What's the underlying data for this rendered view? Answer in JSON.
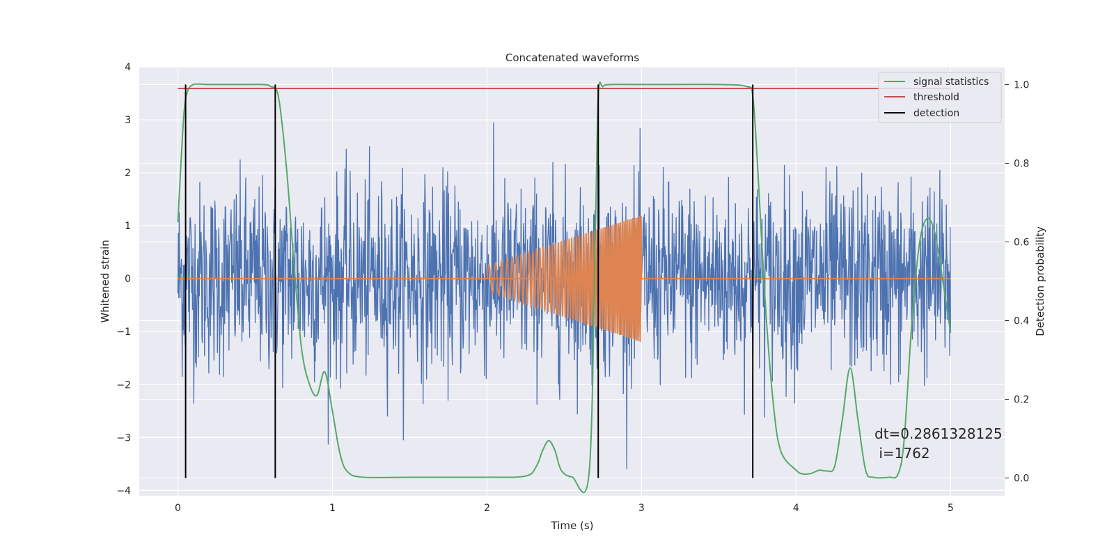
{
  "chart_data": {
    "type": "line",
    "title": "Concatenated waveforms",
    "xlabel": "Time (s)",
    "ylabel": "Whitened strain",
    "y2label": "Detection probability",
    "xlim": [
      -0.25,
      5.35
    ],
    "ylim": [
      -4.1,
      4.0
    ],
    "y2lim": [
      -0.045,
      1.045
    ],
    "xticks": [
      0,
      1,
      2,
      3,
      4,
      5
    ],
    "yticks": [
      -4,
      -3,
      -2,
      -1,
      0,
      1,
      2,
      3,
      4
    ],
    "y2ticks": [
      0.0,
      0.2,
      0.4,
      0.6,
      0.8,
      1.0
    ],
    "y2tick_labels": [
      "0.0",
      "0.2",
      "0.4",
      "0.6",
      "0.8",
      "1.0"
    ],
    "grid": true,
    "legend_position": "top-right",
    "noise": {
      "color": "#4c72b0",
      "x_range": [
        0,
        5
      ],
      "samples": 1800,
      "typical_amplitude": 0.9,
      "peak_amplitude": 3.6
    },
    "chirp": {
      "color": "#dd8452",
      "x_range": [
        2.0,
        3.0
      ],
      "amplitude_start": 0.25,
      "amplitude_end": 1.2,
      "freq_start": 20,
      "freq_end": 95,
      "baseline_range": [
        0,
        5
      ],
      "baseline_value": 0
    },
    "legend": [
      {
        "label": "signal statistics",
        "color": "#55a868"
      },
      {
        "label": "threshold",
        "color": "#c44e52"
      },
      {
        "label": "detection",
        "color": "#000000"
      }
    ],
    "signal_statistics": {
      "color": "#55a868",
      "x": [
        0,
        0.02,
        0.04,
        0.06,
        0.1,
        0.2,
        0.4,
        0.55,
        0.6,
        0.65,
        0.7,
        0.75,
        0.8,
        0.85,
        0.9,
        0.95,
        1.0,
        1.05,
        1.1,
        1.2,
        1.5,
        2.0,
        2.25,
        2.32,
        2.36,
        2.4,
        2.44,
        2.48,
        2.55,
        2.66,
        2.7,
        2.72,
        2.75,
        2.8,
        3.0,
        3.5,
        3.68,
        3.72,
        3.75,
        3.8,
        3.85,
        3.9,
        4.0,
        4.05,
        4.1,
        4.15,
        4.2,
        4.25,
        4.3,
        4.35,
        4.4,
        4.45,
        4.5,
        4.6,
        4.66,
        4.7,
        4.75,
        4.8,
        4.85,
        4.9,
        4.95,
        5.0
      ],
      "y": [
        0.65,
        0.8,
        0.93,
        0.98,
        1.0,
        1.0,
        1.0,
        1.0,
        0.995,
        0.97,
        0.8,
        0.55,
        0.33,
        0.24,
        0.21,
        0.27,
        0.17,
        0.06,
        0.015,
        0.002,
        0.002,
        0.002,
        0.005,
        0.03,
        0.07,
        0.095,
        0.07,
        0.02,
        0.003,
        0.01,
        0.6,
        0.97,
        0.995,
        1.0,
        1.0,
        1.0,
        0.995,
        0.97,
        0.8,
        0.45,
        0.2,
        0.07,
        0.02,
        0.01,
        0.012,
        0.02,
        0.018,
        0.03,
        0.15,
        0.28,
        0.15,
        0.02,
        0.002,
        0.002,
        0.01,
        0.1,
        0.4,
        0.6,
        0.66,
        0.62,
        0.5,
        0.37
      ]
    },
    "threshold": {
      "color": "#c44e52",
      "value": 0.99,
      "x_range": [
        0,
        5
      ]
    },
    "detections": {
      "color": "#000000",
      "x": [
        0.05,
        0.63,
        2.72,
        3.72
      ],
      "y_range": [
        0.0,
        1.0
      ]
    },
    "annotation": {
      "lines": [
        "dt=0.2861328125",
        " i=1762"
      ],
      "x": 4.5,
      "y": -3.0
    }
  }
}
